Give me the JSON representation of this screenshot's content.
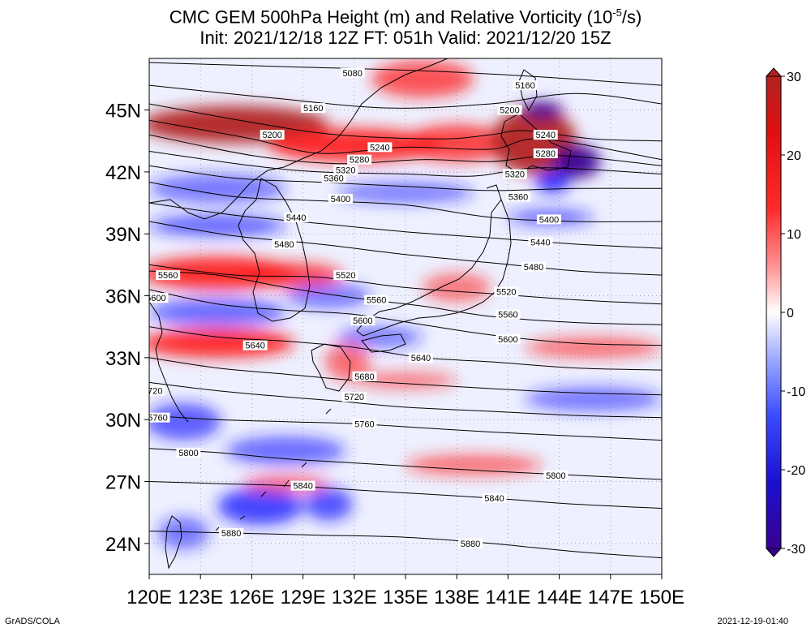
{
  "title": {
    "prefix": "CMC GEM 500hPa Height (m) and Relative Vorticity (10",
    "exponent": "-5",
    "suffix": "/s)",
    "line2": "Init: 2021/12/18 12Z  FT: 051h  Valid: 2021/12/20 15Z"
  },
  "footer": {
    "left": "GrADS/COLA",
    "right": "2021-12-19-01:40"
  },
  "axes": {
    "lon_range": [
      120,
      150
    ],
    "lat_range": [
      22.5,
      47.5
    ],
    "x_ticks": [
      "120E",
      "123E",
      "126E",
      "129E",
      "132E",
      "135E",
      "138E",
      "141E",
      "144E",
      "147E",
      "150E"
    ],
    "y_ticks": [
      {
        "lat": 45,
        "label": "45N"
      },
      {
        "lat": 42,
        "label": "42N"
      },
      {
        "lat": 39,
        "label": "39N"
      },
      {
        "lat": 36,
        "label": "36N"
      },
      {
        "lat": 33,
        "label": "33N"
      },
      {
        "lat": 30,
        "label": "30N"
      },
      {
        "lat": 27,
        "label": "27N"
      },
      {
        "lat": 24,
        "label": "24N"
      }
    ]
  },
  "colorbar": {
    "ticks": [
      {
        "value": 30,
        "label": "30"
      },
      {
        "value": 20,
        "label": "20"
      },
      {
        "value": 10,
        "label": "10"
      },
      {
        "value": 0,
        "label": "0"
      },
      {
        "value": -10,
        "label": "-10"
      },
      {
        "value": -20,
        "label": "-20"
      },
      {
        "value": -30,
        "label": "-30"
      }
    ],
    "colors": {
      "max": "#b22222",
      "pos": "#ff1a1a",
      "zero": "#ffffff",
      "neg": "#1a1aff",
      "min": "#3a0090"
    }
  },
  "chart_data": {
    "type": "heatmap",
    "field_contour": "500hPa geopotential height (m)",
    "field_shaded": "relative vorticity (10^-5/s)",
    "contours": [
      {
        "value": 5080,
        "pts": [
          [
            120,
            47.3
          ],
          [
            128,
            47.1
          ],
          [
            136,
            46.9
          ],
          [
            143,
            46.6
          ],
          [
            150,
            46.2
          ]
        ],
        "labels": [
          {
            "text": "5080",
            "lon": 131.9,
            "lat": 46.8
          }
        ]
      },
      {
        "value": 5160,
        "pts": [
          [
            120,
            46.2
          ],
          [
            127,
            45.6
          ],
          [
            134,
            45.1
          ],
          [
            140,
            45.3
          ],
          [
            145,
            45.8
          ],
          [
            150,
            45.3
          ]
        ],
        "labels": [
          {
            "text": "5160",
            "lon": 129.6,
            "lat": 45.1
          },
          {
            "text": "5160",
            "lon": 142,
            "lat": 46.2
          }
        ]
      },
      {
        "value": 5200,
        "pts": [
          [
            120,
            45.3
          ],
          [
            126,
            44.4
          ],
          [
            131,
            43.8
          ],
          [
            137,
            43.6
          ],
          [
            140,
            43.8
          ],
          [
            142,
            44
          ],
          [
            146,
            43.6
          ],
          [
            150,
            43.5
          ]
        ],
        "labels": [
          {
            "text": "5200",
            "lon": 127.2,
            "lat": 43.8
          },
          {
            "text": "5200",
            "lon": 141.1,
            "lat": 45
          }
        ]
      },
      {
        "value": 5240,
        "pts": [
          [
            120,
            44.5
          ],
          [
            126,
            43.6
          ],
          [
            130,
            42.9
          ],
          [
            135,
            43.2
          ],
          [
            140,
            43.1
          ],
          [
            143,
            43.6
          ],
          [
            150,
            42.6
          ]
        ],
        "labels": [
          {
            "text": "5240",
            "lon": 133.5,
            "lat": 43.2
          },
          {
            "text": "5240",
            "lon": 143.2,
            "lat": 43.8
          }
        ]
      },
      {
        "value": 5280,
        "pts": [
          [
            120,
            43.8
          ],
          [
            126,
            42.8
          ],
          [
            131,
            42.4
          ],
          [
            136,
            42.6
          ],
          [
            140,
            42.5
          ],
          [
            144,
            42.8
          ],
          [
            150,
            42.3
          ]
        ],
        "labels": [
          {
            "text": "5280",
            "lon": 132.3,
            "lat": 42.6
          },
          {
            "text": "5280",
            "lon": 143.2,
            "lat": 42.9
          }
        ]
      },
      {
        "value": 5320,
        "pts": [
          [
            120,
            43
          ],
          [
            126,
            42.3
          ],
          [
            130,
            42
          ],
          [
            135,
            41.9
          ],
          [
            139,
            41.8
          ],
          [
            143,
            42.2
          ],
          [
            150,
            41.9
          ]
        ],
        "labels": [
          {
            "text": "5320",
            "lon": 131.5,
            "lat": 42.1
          },
          {
            "text": "5320",
            "lon": 141.4,
            "lat": 41.9
          }
        ]
      },
      {
        "value": 5360,
        "pts": [
          [
            120,
            42.3
          ],
          [
            125,
            41.7
          ],
          [
            130,
            41.5
          ],
          [
            135,
            41.3
          ],
          [
            140,
            41.1
          ],
          [
            145,
            41.2
          ],
          [
            150,
            41.2
          ]
        ],
        "labels": [
          {
            "text": "5360",
            "lon": 130.8,
            "lat": 41.7
          },
          {
            "text": "5360",
            "lon": 141.6,
            "lat": 40.8
          }
        ]
      },
      {
        "value": 5400,
        "pts": [
          [
            120,
            41.5
          ],
          [
            125,
            40.8
          ],
          [
            130,
            40.6
          ],
          [
            135,
            40.4
          ],
          [
            140,
            39.8
          ],
          [
            145,
            39.6
          ],
          [
            150,
            39.6
          ]
        ],
        "labels": [
          {
            "text": "5400",
            "lon": 131.2,
            "lat": 40.7
          },
          {
            "text": "5400",
            "lon": 143.4,
            "lat": 39.7
          }
        ]
      },
      {
        "value": 5440,
        "pts": [
          [
            120,
            40.5
          ],
          [
            125,
            39.9
          ],
          [
            130,
            39.5
          ],
          [
            135,
            39.1
          ],
          [
            140,
            38.8
          ],
          [
            145,
            38.5
          ],
          [
            150,
            38.3
          ]
        ],
        "labels": [
          {
            "text": "5440",
            "lon": 128.6,
            "lat": 39.8
          },
          {
            "text": "5440",
            "lon": 142.9,
            "lat": 38.6
          }
        ]
      },
      {
        "value": 5480,
        "pts": [
          [
            120,
            39.6
          ],
          [
            125,
            38.9
          ],
          [
            130,
            38.5
          ],
          [
            135,
            38
          ],
          [
            140,
            37.6
          ],
          [
            145,
            37.2
          ],
          [
            150,
            37
          ]
        ],
        "labels": [
          {
            "text": "5480",
            "lon": 127.9,
            "lat": 38.5
          },
          {
            "text": "5480",
            "lon": 142.5,
            "lat": 37.4
          }
        ]
      },
      {
        "value": 5520,
        "pts": [
          [
            120,
            37.5
          ],
          [
            125,
            37
          ],
          [
            130,
            36.9
          ],
          [
            135,
            36.4
          ],
          [
            140,
            36.1
          ],
          [
            145,
            35.8
          ],
          [
            150,
            35.6
          ]
        ],
        "labels": [
          {
            "text": "5520",
            "lon": 131.5,
            "lat": 37
          },
          {
            "text": "5520",
            "lon": 140.9,
            "lat": 36.2
          }
        ]
      },
      {
        "value": 5560,
        "pts": [
          [
            120,
            37.2
          ],
          [
            124,
            37
          ],
          [
            128,
            36.4
          ],
          [
            132,
            35.9
          ],
          [
            136,
            35.5
          ],
          [
            140,
            35
          ],
          [
            145,
            34.7
          ],
          [
            150,
            34.6
          ]
        ],
        "labels": [
          {
            "text": "5560",
            "lon": 121.1,
            "lat": 37
          },
          {
            "text": "5560",
            "lon": 133.3,
            "lat": 35.8
          },
          {
            "text": "5560",
            "lon": 141,
            "lat": 35.1
          }
        ]
      },
      {
        "value": 5600,
        "pts": [
          [
            120,
            36.3
          ],
          [
            124,
            35.6
          ],
          [
            128,
            35.3
          ],
          [
            132,
            35.1
          ],
          [
            136,
            34.6
          ],
          [
            140,
            34.1
          ],
          [
            145,
            33.7
          ],
          [
            150,
            33.6
          ]
        ],
        "labels": [
          {
            "text": "5600",
            "lon": 120.4,
            "lat": 35.9
          },
          {
            "text": "5600",
            "lon": 132.5,
            "lat": 34.8
          },
          {
            "text": "5600",
            "lon": 141,
            "lat": 33.9
          }
        ]
      },
      {
        "value": 5640,
        "pts": [
          [
            120,
            34.5
          ],
          [
            124,
            34
          ],
          [
            128,
            33.8
          ],
          [
            132,
            33.5
          ],
          [
            136,
            33
          ],
          [
            140,
            32.8
          ],
          [
            145,
            32.5
          ],
          [
            150,
            32.4
          ]
        ],
        "labels": [
          {
            "text": "5640",
            "lon": 126.2,
            "lat": 33.6
          },
          {
            "text": "5640",
            "lon": 135.9,
            "lat": 33
          }
        ]
      },
      {
        "value": 5680,
        "pts": [
          [
            120,
            33
          ],
          [
            124,
            32.5
          ],
          [
            128,
            32.2
          ],
          [
            132,
            31.9
          ],
          [
            136,
            31.7
          ],
          [
            140,
            31.5
          ],
          [
            145,
            31.3
          ],
          [
            150,
            31.2
          ]
        ],
        "labels": [
          {
            "text": "5680",
            "lon": 132.6,
            "lat": 32.1
          }
        ]
      },
      {
        "value": 5720,
        "pts": [
          [
            120,
            31.8
          ],
          [
            124,
            31.4
          ],
          [
            128,
            31.1
          ],
          [
            131,
            30.9
          ],
          [
            135,
            30.6
          ],
          [
            140,
            30.4
          ],
          [
            145,
            30.2
          ],
          [
            150,
            30.1
          ]
        ],
        "labels": [
          {
            "text": "5720",
            "lon": 120.2,
            "lat": 31.4
          },
          {
            "text": "5720",
            "lon": 132,
            "lat": 31.1
          }
        ]
      },
      {
        "value": 5760,
        "pts": [
          [
            120,
            30.2
          ],
          [
            124,
            30
          ],
          [
            128,
            29.9
          ],
          [
            132,
            29.8
          ],
          [
            136,
            29.6
          ],
          [
            140,
            29.4
          ],
          [
            145,
            29.2
          ],
          [
            150,
            29
          ]
        ],
        "labels": [
          {
            "text": "5760",
            "lon": 120.5,
            "lat": 30.1
          },
          {
            "text": "5760",
            "lon": 132.6,
            "lat": 29.8
          }
        ]
      },
      {
        "value": 5800,
        "pts": [
          [
            120,
            28.6
          ],
          [
            124,
            28.4
          ],
          [
            128,
            28.1
          ],
          [
            132,
            27.9
          ],
          [
            136,
            27.7
          ],
          [
            140,
            27.5
          ],
          [
            145,
            27.3
          ],
          [
            150,
            27.1
          ]
        ],
        "labels": [
          {
            "text": "5800",
            "lon": 122.3,
            "lat": 28.4
          },
          {
            "text": "5800",
            "lon": 143.8,
            "lat": 27.3
          }
        ]
      },
      {
        "value": 5840,
        "pts": [
          [
            120,
            27
          ],
          [
            124,
            26.9
          ],
          [
            128,
            26.8
          ],
          [
            132,
            26.6
          ],
          [
            136,
            26.4
          ],
          [
            140,
            26.2
          ],
          [
            145,
            25.9
          ],
          [
            150,
            25.7
          ]
        ],
        "labels": [
          {
            "text": "5840",
            "lon": 129,
            "lat": 26.8
          },
          {
            "text": "5840",
            "lon": 140.2,
            "lat": 26.2
          }
        ]
      },
      {
        "value": 5880,
        "pts": [
          [
            120,
            24.6
          ],
          [
            125,
            24.5
          ],
          [
            130,
            24.4
          ],
          [
            135,
            24.3
          ],
          [
            140,
            24
          ],
          [
            145,
            23.6
          ],
          [
            150,
            23.3
          ]
        ],
        "labels": [
          {
            "text": "5880",
            "lon": 124.8,
            "lat": 24.5
          },
          {
            "text": "5880",
            "lon": 138.8,
            "lat": 24
          }
        ]
      }
    ],
    "vorticity_blobs": [
      {
        "v": 22,
        "lon": 125,
        "lat": 44.3,
        "rx": 5.5,
        "ry": 0.9
      },
      {
        "v": 20,
        "lon": 132,
        "lat": 43.3,
        "rx": 5,
        "ry": 0.8
      },
      {
        "v": 16,
        "lon": 138,
        "lat": 43.4,
        "rx": 3,
        "ry": 0.9
      },
      {
        "v": 22,
        "lon": 142.5,
        "lat": 43.5,
        "rx": 2.5,
        "ry": 1.6
      },
      {
        "v": -25,
        "lon": 143,
        "lat": 45,
        "rx": 1.2,
        "ry": 0.4
      },
      {
        "v": -26,
        "lon": 145,
        "lat": 42.5,
        "rx": 1.4,
        "ry": 0.8
      },
      {
        "v": -20,
        "lon": 143.6,
        "lat": 41.5,
        "rx": 1,
        "ry": 0.5
      },
      {
        "v": 14,
        "lon": 136,
        "lat": 46.5,
        "rx": 3,
        "ry": 0.9
      },
      {
        "v": -8,
        "lon": 124,
        "lat": 41.2,
        "rx": 4,
        "ry": 0.7
      },
      {
        "v": -8,
        "lon": 135,
        "lat": 41,
        "rx": 4,
        "ry": 0.5
      },
      {
        "v": 20,
        "lon": 124,
        "lat": 37.1,
        "rx": 4.5,
        "ry": 0.8
      },
      {
        "v": 16,
        "lon": 128.3,
        "lat": 37,
        "rx": 3,
        "ry": 0.6
      },
      {
        "v": -12,
        "lon": 124,
        "lat": 39.4,
        "rx": 4,
        "ry": 0.5
      },
      {
        "v": -10,
        "lon": 124,
        "lat": 35.2,
        "rx": 4,
        "ry": 0.7
      },
      {
        "v": -8,
        "lon": 130.5,
        "lat": 36,
        "rx": 2.5,
        "ry": 0.6
      },
      {
        "v": 20,
        "lon": 124,
        "lat": 33.7,
        "rx": 4.5,
        "ry": 0.7
      },
      {
        "v": -8,
        "lon": 133.5,
        "lat": 34,
        "rx": 2.5,
        "ry": 0.5
      },
      {
        "v": 10,
        "lon": 131.6,
        "lat": 32.8,
        "rx": 1.3,
        "ry": 0.9
      },
      {
        "v": -12,
        "lon": 122,
        "lat": 29.9,
        "rx": 2.2,
        "ry": 0.9
      },
      {
        "v": -10,
        "lon": 128,
        "lat": 28.5,
        "rx": 3.5,
        "ry": 0.7
      },
      {
        "v": 10,
        "lon": 139,
        "lat": 27.8,
        "rx": 4,
        "ry": 0.5
      },
      {
        "v": -16,
        "lon": 126.5,
        "lat": 25.8,
        "rx": 2.5,
        "ry": 0.9
      },
      {
        "v": -14,
        "lon": 130.5,
        "lat": 25.9,
        "rx": 1.4,
        "ry": 0.8
      },
      {
        "v": 10,
        "lon": 128,
        "lat": 26.9,
        "rx": 2.5,
        "ry": 0.4
      },
      {
        "v": -8,
        "lon": 122,
        "lat": 24.5,
        "rx": 1.5,
        "ry": 0.8
      },
      {
        "v": 8,
        "lon": 138,
        "lat": 36.4,
        "rx": 2,
        "ry": 0.7
      },
      {
        "v": -10,
        "lon": 143.5,
        "lat": 39.8,
        "rx": 2.5,
        "ry": 0.4
      },
      {
        "v": 10,
        "lon": 146,
        "lat": 33.5,
        "rx": 4,
        "ry": 0.5
      },
      {
        "v": -8,
        "lon": 146,
        "lat": 31,
        "rx": 4,
        "ry": 0.6
      },
      {
        "v": 8,
        "lon": 135,
        "lat": 31.9,
        "rx": 3,
        "ry": 0.4
      }
    ]
  }
}
